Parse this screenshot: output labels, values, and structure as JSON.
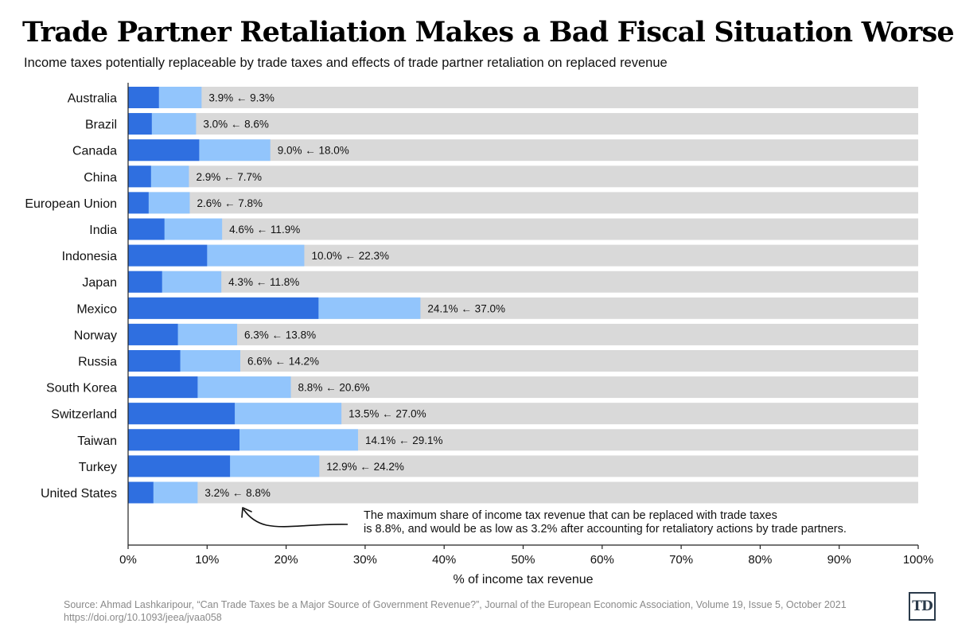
{
  "header": {
    "title": "Trade Partner Retaliation Makes a Bad Fiscal Situation Worse",
    "subtitle": "Income taxes potentially replaceable by trade taxes and effects of trade partner retaliation on replaced revenue"
  },
  "chart_data": {
    "type": "bar",
    "orientation": "horizontal",
    "stacked": "overlay",
    "categories": [
      "Australia",
      "Brazil",
      "Canada",
      "China",
      "European Union",
      "India",
      "Indonesia",
      "Japan",
      "Mexico",
      "Norway",
      "Russia",
      "South Korea",
      "Switzerland",
      "Taiwan",
      "Turkey",
      "United States"
    ],
    "series": [
      {
        "color": "#2f6fe0",
        "values": [
          3.9,
          3.0,
          9.0,
          2.9,
          2.6,
          4.6,
          10.0,
          4.3,
          24.1,
          6.3,
          6.6,
          8.8,
          13.5,
          14.1,
          12.9,
          3.2
        ]
      },
      {
        "color": "#92c5fc",
        "values": [
          9.3,
          8.6,
          18.0,
          7.7,
          7.8,
          11.9,
          22.3,
          11.8,
          37.0,
          13.8,
          14.2,
          20.6,
          27.0,
          29.1,
          24.2,
          8.8
        ]
      }
    ],
    "bar_labels": [
      "3.9% ← 9.3%",
      "3.0% ← 8.6%",
      "9.0% ← 18.0%",
      "2.9% ← 7.7%",
      "2.6% ← 7.8%",
      "4.6% ← 11.9%",
      "10.0% ← 22.3%",
      "4.3% ← 11.8%",
      "24.1% ← 37.0%",
      "6.3% ← 13.8%",
      "6.6% ← 14.2%",
      "8.8% ← 20.6%",
      "13.5% ← 27.0%",
      "14.1% ← 29.1%",
      "12.9% ← 24.2%",
      "3.2% ← 8.8%"
    ],
    "background_bar_value": 100,
    "xlim": [
      0,
      100
    ],
    "xticks": [
      "0%",
      "10%",
      "20%",
      "30%",
      "40%",
      "50%",
      "60%",
      "70%",
      "80%",
      "90%",
      "100%"
    ],
    "xlabel": "% of income tax revenue",
    "ylabel": "",
    "grid": false,
    "annotation": {
      "target_category": "United States",
      "lines": [
        "The maximum share of income tax revenue that can be replaced with trade taxes",
        "is 8.8%, and would be as low as 3.2% after accounting for retaliatory actions by trade partners."
      ]
    },
    "colors": {
      "background_bar": "#d9d9d9",
      "axis": "#222222"
    }
  },
  "footer": {
    "source_line1": "Source: Ahmad Lashkaripour, “Can Trade Taxes be a Major Source of Government Revenue?”, Journal of the European Economic Association, Volume 19, Issue 5, October 2021",
    "source_line2": "https://doi.org/10.1093/jeea/jvaa058",
    "logo_text": "TD"
  }
}
